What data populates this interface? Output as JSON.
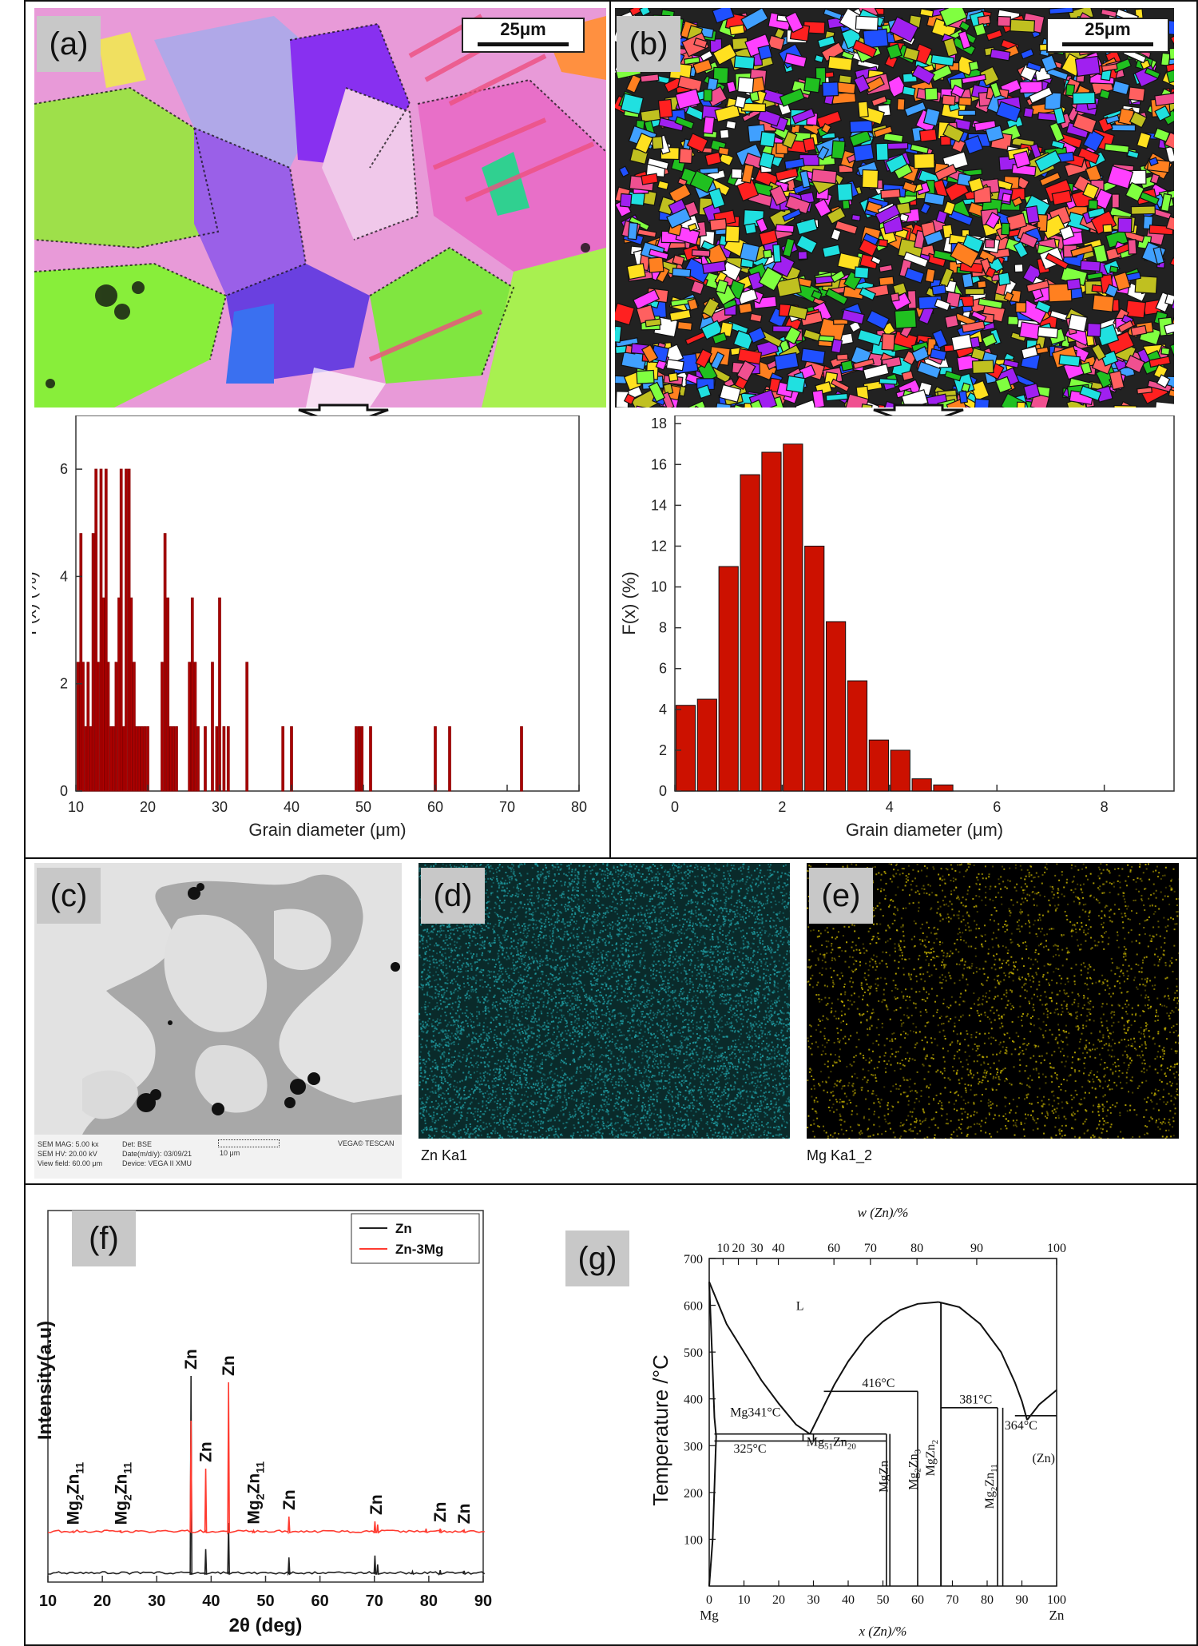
{
  "panels": {
    "a": {
      "label": "(a)",
      "scalebar": "25μm"
    },
    "b": {
      "label": "(b)",
      "scalebar": "25μm"
    },
    "c": {
      "label": "(c)",
      "sem_info": [
        "SEM MAG: 5.00 kx",
        "SEM HV: 20.00 kV",
        "View field: 60.00 μm"
      ],
      "sem_info2": [
        "Det: BSE",
        "Date(m/d/y): 03/09/21",
        "Device: VEGA II XMU"
      ],
      "scale_text": "10 μm",
      "brand": "VEGA© TESCAN"
    },
    "d": {
      "label": "(d)",
      "caption": "Zn Ka1"
    },
    "e": {
      "label": "(e)",
      "caption": "Mg Ka1_2"
    },
    "f": {
      "label": "(f)"
    },
    "g": {
      "label": "(g)"
    }
  },
  "colors": {
    "bar_red": "#cc1100",
    "bar_dark_red": "#b00000",
    "zn_map": "#1f9aa0",
    "mg_map": "#c8b400",
    "xrd_red": "#ff3b30",
    "xrd_black": "#222222"
  },
  "chart_data": [
    {
      "id": "hist-a",
      "type": "bar",
      "xlabel": "Grain diameter (μm)",
      "ylabel": "F(x) (%)",
      "xlim": [
        10,
        80
      ],
      "ylim": [
        0,
        7
      ],
      "xticks": [
        10,
        20,
        30,
        40,
        50,
        60,
        70,
        80
      ],
      "yticks": [
        0,
        2,
        4,
        6
      ],
      "x": [
        10.3,
        10.7,
        11.0,
        11.4,
        11.7,
        12.1,
        12.4,
        12.8,
        13.1,
        13.5,
        13.8,
        14.2,
        14.5,
        14.9,
        15.2,
        15.6,
        16.0,
        16.3,
        16.7,
        17.0,
        17.4,
        17.7,
        18.1,
        18.4,
        18.8,
        19.2,
        19.6,
        20.0,
        22.0,
        22.4,
        22.8,
        23.2,
        23.6,
        24.0,
        25.8,
        26.2,
        26.6,
        27.0,
        28.0,
        29.0,
        29.6,
        30.0,
        30.6,
        31.2,
        33.8,
        38.8,
        40.0,
        49.0,
        49.4,
        49.8,
        51.0,
        60.0,
        62.0,
        72.0
      ],
      "values": [
        2.4,
        4.8,
        2.4,
        1.2,
        2.4,
        1.2,
        4.8,
        6.0,
        2.4,
        6.0,
        3.6,
        6.0,
        2.4,
        1.2,
        1.2,
        2.4,
        3.6,
        6.0,
        1.2,
        6.0,
        6.0,
        3.6,
        2.4,
        1.2,
        1.2,
        1.2,
        1.2,
        1.2,
        2.4,
        4.8,
        3.6,
        1.2,
        1.2,
        1.2,
        2.4,
        3.6,
        2.4,
        1.2,
        1.2,
        2.4,
        1.2,
        3.6,
        1.2,
        1.2,
        2.4,
        1.2,
        1.2,
        1.2,
        1.2,
        1.2,
        1.2,
        1.2,
        1.2,
        1.2
      ],
      "bar_width": 0.3
    },
    {
      "id": "hist-b",
      "type": "bar",
      "xlabel": "Grain diameter (μm)",
      "ylabel": "F(x) (%)",
      "xlim": [
        0,
        9.3
      ],
      "ylim": [
        0,
        18.4
      ],
      "xticks": [
        0,
        2,
        4,
        6,
        8
      ],
      "yticks": [
        0,
        2,
        4,
        6,
        8,
        10,
        12,
        14,
        16,
        18
      ],
      "x": [
        0.2,
        0.6,
        1.0,
        1.4,
        1.8,
        2.2,
        2.6,
        3.0,
        3.4,
        3.8,
        4.2,
        4.6,
        5.0
      ],
      "values": [
        4.2,
        4.5,
        11.0,
        15.5,
        16.6,
        17.0,
        12.0,
        8.3,
        5.4,
        2.5,
        2.0,
        0.6,
        0.3
      ],
      "bar_width": 0.36
    },
    {
      "id": "xrd",
      "type": "line",
      "xlabel": "2θ (deg)",
      "ylabel": "Intensity(a.u)",
      "xlim": [
        10,
        90
      ],
      "xticks": [
        10,
        20,
        30,
        40,
        50,
        60,
        70,
        80,
        90
      ],
      "legend": [
        "Zn",
        "Zn-3Mg"
      ],
      "legend_position": "top-right",
      "series": [
        {
          "name": "Zn",
          "peaks": [
            [
              36.3,
              0.62
            ],
            [
              39.0,
              0.078
            ],
            [
              43.2,
              0.16
            ],
            [
              54.3,
              0.052
            ],
            [
              70.1,
              0.058
            ],
            [
              70.6,
              0.03
            ],
            [
              77.0,
              0.008
            ],
            [
              82.1,
              0.012
            ],
            [
              86.5,
              0.01
            ]
          ]
        },
        {
          "name": "Zn-3Mg",
          "peaks": [
            [
              14.6,
              0.004
            ],
            [
              23.4,
              0.004
            ],
            [
              36.3,
              0.35
            ],
            [
              39.0,
              0.2
            ],
            [
              43.2,
              0.47
            ],
            [
              47.8,
              0.006
            ],
            [
              54.3,
              0.05
            ],
            [
              70.1,
              0.035
            ],
            [
              70.6,
              0.025
            ],
            [
              79.5,
              0.012
            ],
            [
              82.1,
              0.012
            ],
            [
              86.5,
              0.007
            ]
          ]
        }
      ],
      "annotations": [
        {
          "main": "Mg",
          "sub": "2",
          "main2": "Zn",
          "sub2": "11",
          "x": 14.6
        },
        {
          "main": "Mg",
          "sub": "2",
          "main2": "Zn",
          "sub2": "11",
          "x": 23.4
        },
        {
          "main": "Zn",
          "x": 36.3
        },
        {
          "main": "Zn",
          "x": 39.0
        },
        {
          "main": "Zn",
          "x": 43.2
        },
        {
          "main": "Mg",
          "sub": "2",
          "main2": "Zn",
          "sub2": "11",
          "x": 47.8
        },
        {
          "main": "Zn",
          "x": 54.3
        },
        {
          "main": "Zn",
          "x": 70.3
        },
        {
          "main": "Zn",
          "x": 82.1
        },
        {
          "main": "Zn",
          "x": 86.5
        }
      ]
    },
    {
      "id": "phase-diagram",
      "type": "line",
      "xlabel": "x (Zn)/%",
      "x2label": "w (Zn)/%",
      "ylabel": "Temperature /°C",
      "xlim": [
        0,
        100
      ],
      "ylim": [
        0,
        700
      ],
      "xticks": [
        0,
        10,
        20,
        30,
        40,
        50,
        60,
        70,
        80,
        90,
        100
      ],
      "yticks": [
        100,
        200,
        300,
        400,
        500,
        600,
        700
      ],
      "x2ticks": [
        {
          "label": "10",
          "x": 4.0
        },
        {
          "label": "20",
          "x": 8.4
        },
        {
          "label": "30",
          "x": 13.7
        },
        {
          "label": "40",
          "x": 19.9
        },
        {
          "label": "60",
          "x": 35.9
        },
        {
          "label": "70",
          "x": 46.4
        },
        {
          "label": "80",
          "x": 59.8
        },
        {
          "label": "90",
          "x": 77.0
        },
        {
          "label": "100",
          "x": 100
        }
      ],
      "end_labels": {
        "left": "Mg",
        "right": "Zn"
      },
      "region_labels": [
        {
          "text": "L",
          "x": 25,
          "y": 590
        },
        {
          "text": "Mg341°C",
          "x": 6,
          "y": 363
        },
        {
          "text": "325°C",
          "x": 7,
          "y": 285
        },
        {
          "text": "416°C",
          "x": 44,
          "y": 425
        },
        {
          "text": "381°C",
          "x": 72,
          "y": 390
        },
        {
          "text": "364°C",
          "x": 85,
          "y": 335
        },
        {
          "text": "(Zn)",
          "x": 93,
          "y": 265
        }
      ],
      "compounds": [
        {
          "main": "Mg",
          "sub": "51",
          "main2": "Zn",
          "sub2": "20",
          "x": 28,
          "y": 300,
          "vertical": false
        },
        {
          "main": "MgZn",
          "x": 50,
          "y": 200,
          "vertical": true
        },
        {
          "main": "Mg",
          "sub": "2",
          "main2": "Zn",
          "sub2": "3",
          "x": 58.5,
          "y": 205,
          "vertical": true
        },
        {
          "main": "MgZn",
          "sub": "2",
          "x": 63.5,
          "y": 235,
          "vertical": true
        },
        {
          "main": "Mg",
          "sub": "2",
          "main2": "Zn",
          "sub2": "11",
          "x": 80.5,
          "y": 165,
          "vertical": true
        }
      ],
      "lines": [
        {
          "name": "liquidus-mg",
          "points": [
            [
              0,
              650
            ],
            [
              5,
              560
            ],
            [
              10,
              500
            ],
            [
              15,
              440
            ],
            [
              20,
              390
            ],
            [
              25,
              345
            ],
            [
              29,
              325
            ]
          ]
        },
        {
          "name": "solidus-mg",
          "points": [
            [
              0,
              650
            ],
            [
              0.8,
              500
            ],
            [
              1.5,
              360
            ],
            [
              2,
              320
            ],
            [
              1,
              100
            ],
            [
              0,
              0
            ]
          ]
        },
        {
          "name": "liquidus-mid",
          "points": [
            [
              29,
              325
            ],
            [
              32,
              370
            ],
            [
              36,
              430
            ],
            [
              40,
              480
            ],
            [
              45,
              530
            ],
            [
              50,
              565
            ],
            [
              55,
              590
            ],
            [
              60,
              603
            ],
            [
              66,
              607
            ]
          ]
        },
        {
          "name": "liquidus-right",
          "points": [
            [
              66,
              607
            ],
            [
              72,
              596
            ],
            [
              78,
              560
            ],
            [
              84,
              500
            ],
            [
              88,
              435
            ],
            [
              90,
              395
            ],
            [
              91.5,
              355
            ]
          ]
        },
        {
          "name": "liquidus-zn",
          "points": [
            [
              91.5,
              355
            ],
            [
              95,
              388
            ],
            [
              100,
              419
            ]
          ]
        }
      ]
    }
  ]
}
